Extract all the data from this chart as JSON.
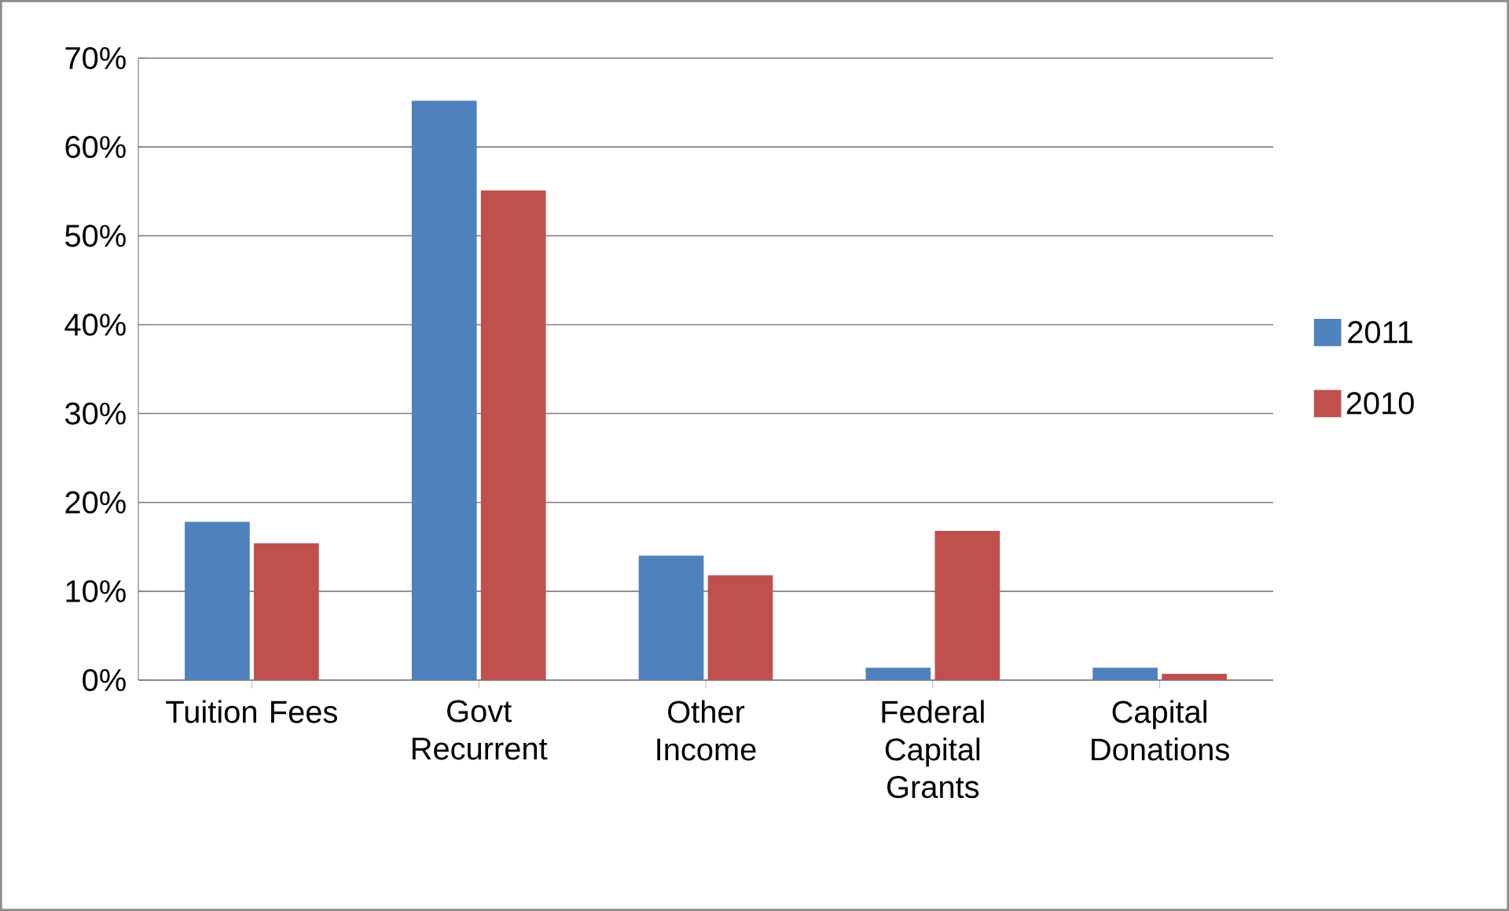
{
  "chart_data": {
    "type": "bar",
    "categories": [
      "Tuition Fees",
      "Govt Recurrent",
      "Other Income",
      "Federal Capital Grants",
      "Capital Donations"
    ],
    "series": [
      {
        "name": "2011",
        "color": "#4f81bd",
        "values": [
          17.8,
          65.2,
          14.0,
          1.4,
          1.4
        ]
      },
      {
        "name": "2010",
        "color": "#c0504d",
        "values": [
          15.4,
          55.1,
          11.8,
          16.8,
          0.7
        ]
      }
    ],
    "ylim": [
      0,
      70
    ],
    "yticks": [
      {
        "value": 0,
        "label": "0%"
      },
      {
        "value": 10,
        "label": "10%"
      },
      {
        "value": 20,
        "label": "20%"
      },
      {
        "value": 30,
        "label": "30%"
      },
      {
        "value": 40,
        "label": "40%"
      },
      {
        "value": 50,
        "label": "50%"
      },
      {
        "value": 60,
        "label": "60%"
      },
      {
        "value": 70,
        "label": "70%"
      }
    ],
    "grid": "y",
    "legend": "right"
  }
}
